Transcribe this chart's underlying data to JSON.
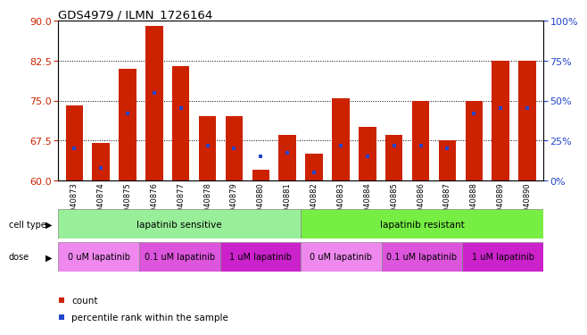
{
  "title": "GDS4979 / ILMN_1726164",
  "samples": [
    "GSM940873",
    "GSM940874",
    "GSM940875",
    "GSM940876",
    "GSM940877",
    "GSM940878",
    "GSM940879",
    "GSM940880",
    "GSM940881",
    "GSM940882",
    "GSM940883",
    "GSM940884",
    "GSM940885",
    "GSM940886",
    "GSM940887",
    "GSM940888",
    "GSM940889",
    "GSM940890"
  ],
  "counts": [
    74.0,
    67.0,
    81.0,
    89.0,
    81.5,
    72.0,
    72.0,
    62.0,
    68.5,
    65.0,
    75.5,
    70.0,
    68.5,
    75.0,
    67.5,
    75.0,
    82.5,
    82.5
  ],
  "percentile_ranks": [
    20,
    8,
    42,
    55,
    45,
    22,
    20,
    15,
    17,
    5,
    22,
    15,
    22,
    22,
    20,
    42,
    45,
    45
  ],
  "ymin": 60,
  "ymax": 90,
  "yticks_left": [
    60,
    67.5,
    75,
    82.5,
    90
  ],
  "yticks_right": [
    0,
    25,
    50,
    75,
    100
  ],
  "bar_color": "#cc2200",
  "marker_color": "#2244cc",
  "cell_type_sensitive": "lapatinib sensitive",
  "cell_type_resistant": "lapatinib resistant",
  "cell_type_color_sensitive": "#99ee99",
  "cell_type_color_resistant": "#77ee44",
  "dose_labels": [
    "0 uM lapatinib",
    "0.1 uM lapatinib",
    "1 uM lapatinib",
    "0 uM lapatinib",
    "0.1 uM lapatinib",
    "1 uM lapatinib"
  ],
  "dose_colors": [
    "#ee88ee",
    "#dd55dd",
    "#cc22cc",
    "#ee88ee",
    "#dd55dd",
    "#cc22cc"
  ],
  "bg_color": "#ffffff"
}
